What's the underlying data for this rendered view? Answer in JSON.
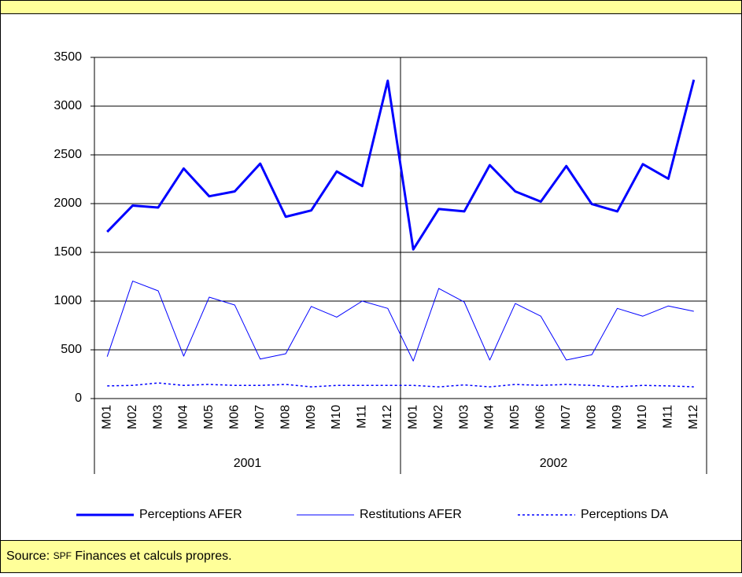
{
  "chart_data": {
    "type": "line",
    "categories": [
      "M01",
      "M02",
      "M03",
      "M04",
      "M05",
      "M06",
      "M07",
      "M08",
      "M09",
      "M10",
      "M11",
      "M12",
      "M01",
      "M02",
      "M03",
      "M04",
      "M05",
      "M06",
      "M07",
      "M08",
      "M09",
      "M10",
      "M11",
      "M12"
    ],
    "category_groups": [
      "2001",
      "2002"
    ],
    "series": [
      {
        "name": "Perceptions AFER",
        "color": "#0000ff",
        "width": 3,
        "dashed": false,
        "values": [
          1710,
          1980,
          1960,
          2360,
          2075,
          2125,
          2410,
          1865,
          1930,
          2330,
          2180,
          3260,
          1530,
          1945,
          1920,
          2395,
          2125,
          2020,
          2385,
          1995,
          1920,
          2405,
          2255,
          3270
        ]
      },
      {
        "name": "Restitutions AFER",
        "color": "#0000ff",
        "width": 1,
        "dashed": false,
        "values": [
          430,
          1205,
          1105,
          435,
          1040,
          960,
          405,
          460,
          945,
          835,
          1000,
          925,
          385,
          1130,
          990,
          395,
          975,
          845,
          395,
          450,
          925,
          845,
          950,
          895
        ]
      },
      {
        "name": "Perceptions DA",
        "color": "#0000ff",
        "width": 1.5,
        "dashed": true,
        "values": [
          130,
          135,
          160,
          135,
          145,
          135,
          135,
          145,
          120,
          135,
          135,
          135,
          135,
          120,
          140,
          120,
          145,
          135,
          145,
          135,
          120,
          135,
          130,
          120
        ]
      }
    ],
    "ylim": [
      0,
      3500
    ],
    "yticks": [
      0,
      500,
      1000,
      1500,
      2000,
      2500,
      3000,
      3500
    ],
    "grid": true,
    "legend": "bottom"
  },
  "footer": {
    "source_label": "Source:",
    "source_abbr": "SPF",
    "source_text": "Finances et calculs propres."
  }
}
